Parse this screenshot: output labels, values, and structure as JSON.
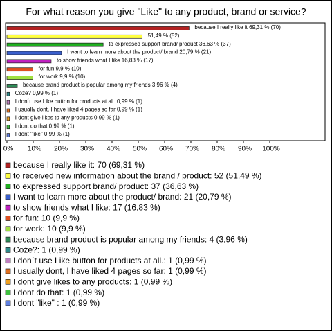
{
  "chart_data": {
    "type": "bar",
    "orientation": "horizontal",
    "title": "For what reason you give \"Like\" to any product, brand or service?",
    "values": [
      69.31,
      51.49,
      36.63,
      20.79,
      16.83,
      9.9,
      9.9,
      3.96,
      0.99,
      0.99,
      0.99,
      0.99,
      0.99,
      0.99
    ],
    "value_labels": [
      "because I really like it 69,31 % (70)",
      "51,49 % (52)",
      "to expressed support brand/ product 36,63 % (37)",
      "I want to learn more about the product/ brand 20,79 % (21)",
      "to show friends what I like 16,83 % (17)",
      "for fun 9,9 % (10)",
      "for work 9,9 % (10)",
      "because brand product is popular among my friends 3,96 % (4)",
      "Cože? 0,99 % (1)",
      "I don´t use Like button for products at all. 0,99 % (1)",
      "I usually dont, I have liked 4 pages so far 0,99 % (1)",
      "I dont give likes to any products 0,99 % (1)",
      "I dont do that 0,99 % (1)",
      "I dont \"like\" 0,99 % (1)"
    ],
    "legend": [
      "because I really like it: 70 (69,31 %)",
      "to received new information about the brand / product: 52 (51,49 %)",
      "to expressed support brand/ product: 37 (36,63 %)",
      "I want to learn more about the product/ brand: 21 (20,79 %)",
      "to show friends what I like: 17 (16,83 %)",
      "for fun: 10 (9,9 %)",
      "for work: 10 (9,9 %)",
      "because brand product is popular among my friends: 4 (3,96 %)",
      "Cože?: 1 (0,99 %)",
      "I don´t use Like button for products at all.: 1 (0,99 %)",
      "I usually dont, I have liked 4 pages so far: 1 (0,99 %)",
      "I dont give likes to any products: 1 (0,99 %)",
      "I dont do that: 1 (0,99 %)",
      "I dont \"like\" : 1 (0,99 %)"
    ],
    "colors": [
      "#b22222",
      "#ffff40",
      "#20b020",
      "#3a5fcd",
      "#c020c0",
      "#e05020",
      "#a0e040",
      "#2e8b57",
      "#2e8b8b",
      "#c080c0",
      "#e07020",
      "#f0a020",
      "#40c040",
      "#6080e0"
    ],
    "xlim": [
      0,
      120
    ],
    "xticks": [
      {
        "value": 0,
        "label": "0%"
      },
      {
        "value": 10,
        "label": "10%"
      },
      {
        "value": 20,
        "label": "20%"
      },
      {
        "value": 30,
        "label": "30%"
      },
      {
        "value": 40,
        "label": "40%"
      },
      {
        "value": 50,
        "label": "50%"
      },
      {
        "value": 60,
        "label": "60%"
      },
      {
        "value": 70,
        "label": "70%"
      },
      {
        "value": 80,
        "label": "80%"
      },
      {
        "value": 90,
        "label": "90%"
      },
      {
        "value": 100,
        "label": "100%"
      }
    ]
  }
}
